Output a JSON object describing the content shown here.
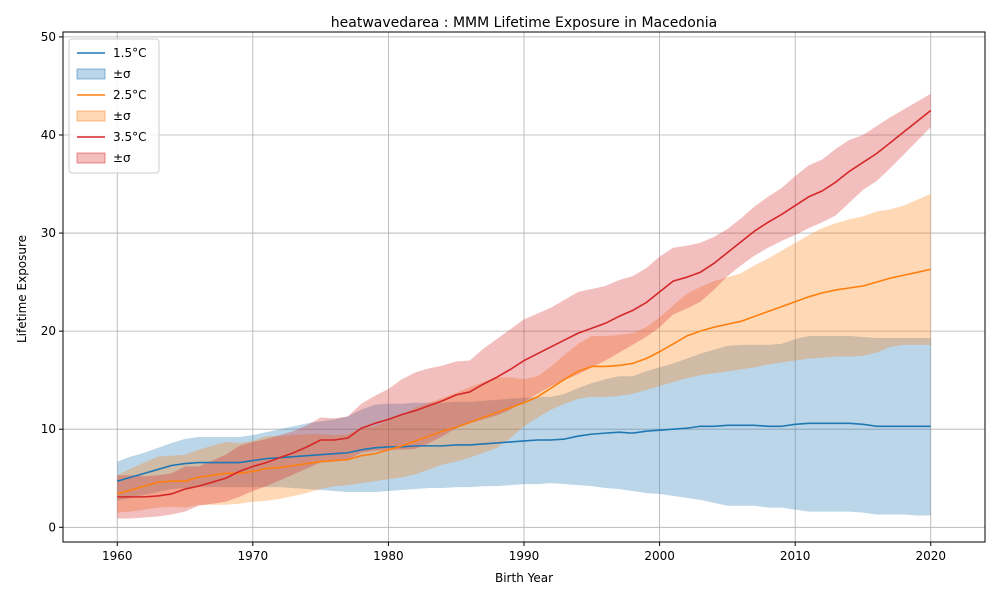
{
  "chart_data": {
    "type": "line",
    "title": "heatwavedarea : MMM Lifetime Exposure in Macedonia",
    "xlabel": "Birth Year",
    "ylabel": "Lifetime Exposure",
    "xlim": [
      1956,
      2024
    ],
    "ylim": [
      -1.5,
      50.5
    ],
    "xticks": [
      1960,
      1970,
      1980,
      1990,
      2000,
      2010,
      2020
    ],
    "yticks": [
      0,
      10,
      20,
      30,
      40,
      50
    ],
    "grid": true,
    "legend_position": "top-left",
    "band_label": "±σ",
    "x": [
      1960,
      1961,
      1962,
      1963,
      1964,
      1965,
      1966,
      1967,
      1968,
      1969,
      1970,
      1971,
      1972,
      1973,
      1974,
      1975,
      1976,
      1977,
      1978,
      1979,
      1980,
      1981,
      1982,
      1983,
      1984,
      1985,
      1986,
      1987,
      1988,
      1989,
      1990,
      1991,
      1992,
      1993,
      1994,
      1995,
      1996,
      1997,
      1998,
      1999,
      2000,
      2001,
      2002,
      2003,
      2004,
      2005,
      2006,
      2007,
      2008,
      2009,
      2010,
      2011,
      2012,
      2013,
      2014,
      2015,
      2016,
      2017,
      2018,
      2019,
      2020
    ],
    "series": [
      {
        "name": "1.5°C",
        "color": "#1f77b4",
        "values": [
          4.7,
          5.1,
          5.5,
          5.9,
          6.3,
          6.5,
          6.6,
          6.6,
          6.6,
          6.6,
          6.8,
          7.0,
          7.1,
          7.2,
          7.3,
          7.4,
          7.5,
          7.6,
          7.9,
          8.1,
          8.2,
          8.2,
          8.3,
          8.3,
          8.3,
          8.4,
          8.4,
          8.5,
          8.6,
          8.7,
          8.8,
          8.9,
          8.9,
          9.0,
          9.3,
          9.5,
          9.6,
          9.7,
          9.6,
          9.8,
          9.9,
          10.0,
          10.1,
          10.3,
          10.3,
          10.4,
          10.4,
          10.4,
          10.3,
          10.3,
          10.5,
          10.6,
          10.6,
          10.6,
          10.6,
          10.5,
          10.3,
          10.3,
          10.3,
          10.3,
          10.3
        ],
        "lower": [
          2.7,
          3.0,
          3.3,
          3.6,
          3.9,
          4.0,
          4.1,
          4.1,
          4.1,
          4.1,
          4.1,
          4.1,
          4.1,
          4.0,
          3.9,
          3.8,
          3.7,
          3.6,
          3.6,
          3.6,
          3.7,
          3.8,
          3.9,
          4.0,
          4.0,
          4.1,
          4.1,
          4.2,
          4.2,
          4.3,
          4.4,
          4.4,
          4.5,
          4.4,
          4.3,
          4.2,
          4.0,
          3.9,
          3.7,
          3.5,
          3.4,
          3.2,
          3.0,
          2.8,
          2.5,
          2.2,
          2.2,
          2.2,
          2.0,
          2.0,
          1.8,
          1.6,
          1.6,
          1.6,
          1.6,
          1.5,
          1.3,
          1.3,
          1.3,
          1.2,
          1.2
        ],
        "upper": [
          6.7,
          7.2,
          7.6,
          8.1,
          8.6,
          9.0,
          9.2,
          9.2,
          9.2,
          9.2,
          9.4,
          9.7,
          10.0,
          10.3,
          10.6,
          10.8,
          11.0,
          11.3,
          12.0,
          12.5,
          12.6,
          12.6,
          12.7,
          12.7,
          12.7,
          12.8,
          12.8,
          12.9,
          13.0,
          13.1,
          13.2,
          13.3,
          13.3,
          13.6,
          14.2,
          14.7,
          15.1,
          15.4,
          15.4,
          15.9,
          16.3,
          16.7,
          17.2,
          17.7,
          18.1,
          18.5,
          18.6,
          18.6,
          18.6,
          18.7,
          19.2,
          19.5,
          19.5,
          19.5,
          19.5,
          19.4,
          19.3,
          19.3,
          19.3,
          19.3,
          19.3
        ]
      },
      {
        "name": "2.5°C",
        "color": "#ff7f0e",
        "values": [
          3.4,
          3.8,
          4.2,
          4.6,
          4.7,
          4.7,
          5.1,
          5.3,
          5.5,
          5.5,
          5.7,
          6.0,
          6.1,
          6.3,
          6.5,
          6.7,
          6.8,
          6.9,
          7.3,
          7.5,
          7.9,
          8.3,
          8.8,
          9.3,
          9.8,
          10.2,
          10.7,
          11.2,
          11.7,
          12.2,
          12.7,
          13.3,
          14.2,
          15.1,
          15.9,
          16.4,
          16.4,
          16.5,
          16.7,
          17.2,
          17.9,
          18.7,
          19.5,
          20.0,
          20.4,
          20.7,
          21.0,
          21.5,
          22.0,
          22.5,
          23.0,
          23.5,
          23.9,
          24.2,
          24.4,
          24.6,
          25.0,
          25.4,
          25.7,
          26.0,
          26.3
        ],
        "lower": [
          1.5,
          1.6,
          1.8,
          2.0,
          2.1,
          2.0,
          2.3,
          2.3,
          2.3,
          2.4,
          2.6,
          2.7,
          2.9,
          3.2,
          3.5,
          3.9,
          4.2,
          4.3,
          4.5,
          4.7,
          4.9,
          5.1,
          5.4,
          5.9,
          6.4,
          6.7,
          7.1,
          7.6,
          8.1,
          9.1,
          10.3,
          11.2,
          12.0,
          12.6,
          13.1,
          13.3,
          13.3,
          13.4,
          13.6,
          14.0,
          14.4,
          14.8,
          15.2,
          15.5,
          15.7,
          15.9,
          16.1,
          16.3,
          16.6,
          16.8,
          17.0,
          17.2,
          17.3,
          17.4,
          17.4,
          17.5,
          17.8,
          18.4,
          18.6,
          18.6,
          18.6
        ],
        "upper": [
          5.3,
          6.0,
          6.6,
          7.2,
          7.3,
          7.4,
          7.9,
          8.3,
          8.7,
          8.6,
          8.8,
          9.3,
          9.3,
          9.4,
          9.5,
          9.5,
          9.4,
          9.5,
          10.1,
          10.3,
          10.9,
          11.5,
          12.2,
          12.7,
          13.2,
          13.7,
          14.3,
          14.8,
          15.3,
          15.3,
          15.1,
          15.4,
          16.4,
          17.6,
          18.7,
          19.5,
          19.5,
          19.6,
          19.8,
          20.4,
          21.4,
          22.6,
          23.8,
          24.5,
          25.1,
          25.5,
          25.9,
          26.7,
          27.4,
          28.2,
          29.0,
          29.8,
          30.5,
          31.0,
          31.4,
          31.7,
          32.2,
          32.4,
          32.8,
          33.4,
          34.0
        ]
      },
      {
        "name": "3.5°C",
        "color": "#d62728",
        "values": [
          3.1,
          3.1,
          3.1,
          3.2,
          3.4,
          3.9,
          4.2,
          4.6,
          5.0,
          5.7,
          6.2,
          6.6,
          7.1,
          7.6,
          8.2,
          8.9,
          8.9,
          9.1,
          10.1,
          10.6,
          11.0,
          11.5,
          11.9,
          12.4,
          12.9,
          13.5,
          13.8,
          14.6,
          15.3,
          16.1,
          17.0,
          17.7,
          18.4,
          19.1,
          19.8,
          20.3,
          20.8,
          21.5,
          22.1,
          22.9,
          24.0,
          25.1,
          25.5,
          26.0,
          26.9,
          28.0,
          29.1,
          30.2,
          31.1,
          31.9,
          32.8,
          33.7,
          34.3,
          35.2,
          36.3,
          37.2,
          38.1,
          39.2,
          40.3,
          41.4,
          42.5
        ],
        "lower": [
          0.9,
          0.9,
          1.0,
          1.1,
          1.3,
          1.6,
          2.2,
          2.4,
          2.6,
          3.1,
          3.7,
          4.2,
          4.8,
          5.4,
          6.0,
          6.6,
          6.7,
          6.9,
          7.6,
          7.8,
          7.9,
          7.9,
          8.0,
          8.6,
          9.3,
          10.1,
          10.6,
          11.0,
          11.4,
          12.0,
          12.8,
          13.6,
          14.4,
          15.0,
          15.6,
          16.3,
          17.0,
          17.8,
          18.6,
          19.4,
          20.4,
          21.7,
          22.3,
          23.0,
          24.2,
          25.6,
          26.7,
          27.7,
          28.5,
          29.2,
          29.8,
          30.5,
          31.1,
          31.8,
          33.1,
          34.4,
          35.3,
          36.6,
          38.0,
          39.4,
          40.8
        ],
        "upper": [
          5.3,
          5.3,
          5.2,
          5.3,
          5.5,
          6.2,
          6.2,
          6.8,
          7.4,
          8.3,
          8.7,
          9.0,
          9.4,
          9.8,
          10.4,
          11.2,
          11.1,
          11.3,
          12.6,
          13.4,
          14.1,
          15.1,
          15.8,
          16.2,
          16.5,
          16.9,
          17.0,
          18.2,
          19.2,
          20.2,
          21.2,
          21.8,
          22.4,
          23.2,
          24.0,
          24.3,
          24.6,
          25.2,
          25.6,
          26.4,
          27.6,
          28.5,
          28.7,
          29.0,
          29.6,
          30.4,
          31.5,
          32.7,
          33.7,
          34.6,
          35.8,
          36.9,
          37.5,
          38.6,
          39.5,
          40.0,
          40.9,
          41.8,
          42.6,
          43.4,
          44.2
        ]
      }
    ]
  }
}
